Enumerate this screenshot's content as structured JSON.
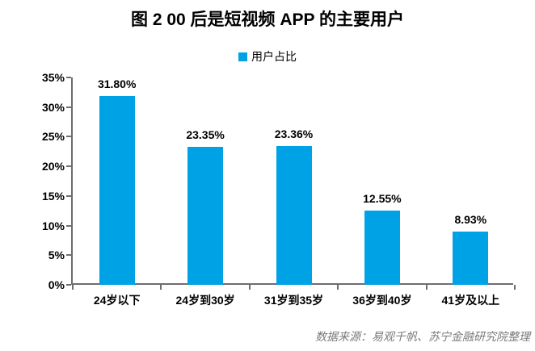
{
  "title": "图 2 00 后是短视频 APP 的主要用户",
  "legend": {
    "label": "用户占比"
  },
  "source_note": "数据来源：易观千帆、苏宁金融研究院整理",
  "chart_data": {
    "type": "bar",
    "title": "图 2 00 后是短视频 APP 的主要用户",
    "series_name": "用户占比",
    "categories": [
      "24岁以下",
      "24岁到30岁",
      "31岁到35岁",
      "36岁到40岁",
      "41岁及以上"
    ],
    "values": [
      31.8,
      23.35,
      23.36,
      12.55,
      8.93
    ],
    "value_labels": [
      "31.80%",
      "23.35%",
      "23.36%",
      "12.55%",
      "8.93%"
    ],
    "xlabel": "",
    "ylabel": "",
    "ylim": [
      0,
      35
    ],
    "ytick_step": 5,
    "ytick_labels": [
      "0%",
      "5%",
      "10%",
      "15%",
      "20%",
      "25%",
      "30%",
      "35%"
    ],
    "bar_color": "#00a2e6",
    "grid": false,
    "legend_position": "top-center",
    "source": "数据来源：易观千帆、苏宁金融研究院整理"
  }
}
